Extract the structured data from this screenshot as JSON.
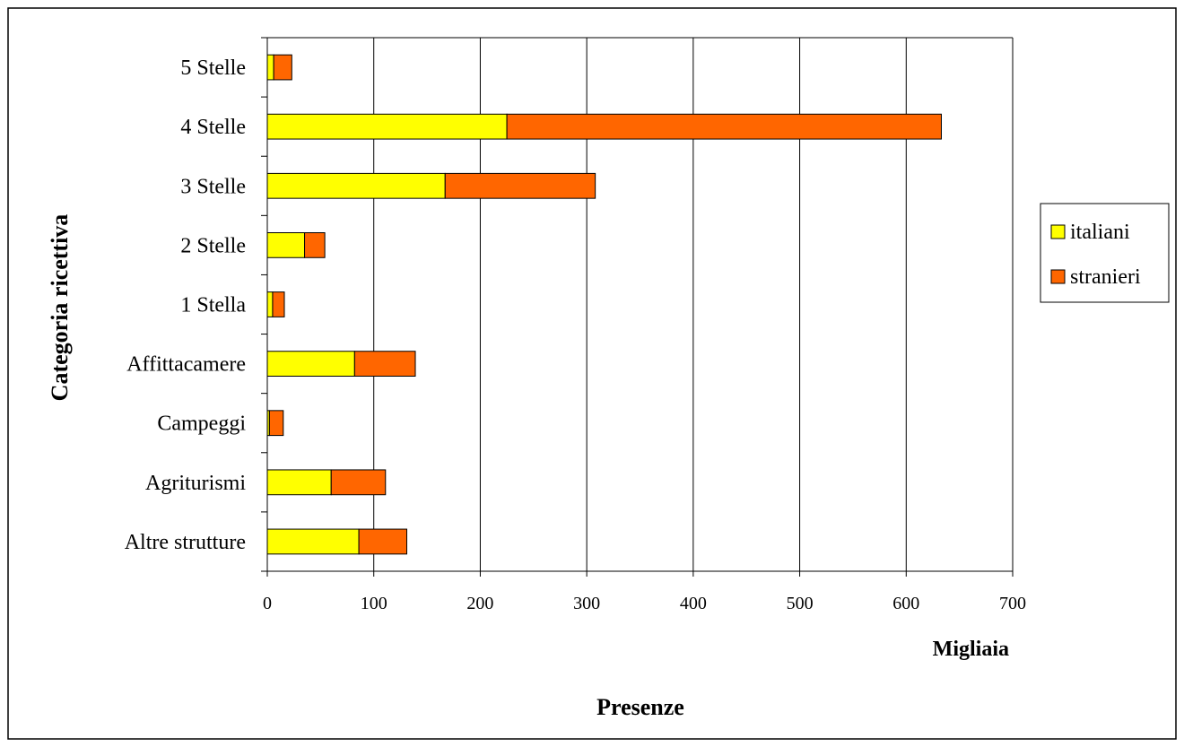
{
  "chart_data": {
    "type": "bar",
    "orientation": "horizontal",
    "stacked": true,
    "categories": [
      "5 Stelle",
      "4 Stelle",
      "3 Stelle",
      "2 Stelle",
      "1 Stella",
      "Affittacamere",
      "Campeggi",
      "Agriturismi",
      "Altre strutture"
    ],
    "series": [
      {
        "name": "italiani",
        "color": "#ffff00",
        "values": [
          6,
          225,
          167,
          35,
          5,
          82,
          2,
          60,
          86
        ]
      },
      {
        "name": "stranieri",
        "color": "#ff6600",
        "values": [
          17,
          408,
          141,
          19,
          11,
          57,
          13,
          51,
          45
        ]
      }
    ],
    "xlabel": "Presenze",
    "unit_label": "Migliaia",
    "ylabel": "Categoria ricettiva",
    "xlim": [
      0,
      700
    ],
    "x_ticks": [
      0,
      100,
      200,
      300,
      400,
      500,
      600,
      700
    ],
    "grid": "vertical",
    "legend_position": "right"
  }
}
